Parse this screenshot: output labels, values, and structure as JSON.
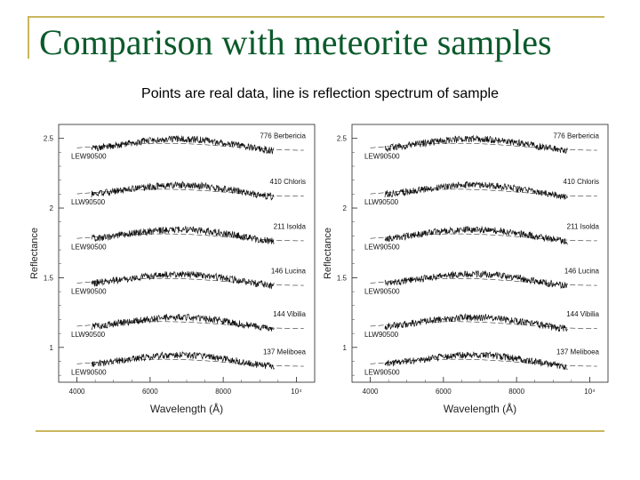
{
  "slide": {
    "title": "Comparison with meteorite samples",
    "subtitle": "Points are real data, line is reflection spectrum of sample"
  },
  "colors": {
    "title": "#0b5a2b",
    "frame": "#c9b65e"
  },
  "chart_data": [
    {
      "type": "line",
      "xlabel": "Wavelength (Å)",
      "ylabel": "Reflectance",
      "xlim": [
        3500,
        10500
      ],
      "ylim": [
        0.75,
        2.6
      ],
      "x_ticks": [
        "4000",
        "6000",
        "8000",
        "10⁴"
      ],
      "y_ticks": [
        "1",
        "1.5",
        "2",
        "2.5"
      ],
      "series": [
        {
          "name": "776 Berbericia",
          "sample": "LEW90500",
          "offset": 2.45
        },
        {
          "name": "410 Chloris",
          "sample": "LLW90500",
          "offset": 2.12
        },
        {
          "name": "211 Isolda",
          "sample": "LEW90500",
          "offset": 1.8
        },
        {
          "name": "146 Lucina",
          "sample": "LEW90500",
          "offset": 1.48
        },
        {
          "name": "144 Vibilia",
          "sample": "LLW90500",
          "offset": 1.17
        },
        {
          "name": "137 Meliboea",
          "sample": "LEW90500",
          "offset": 0.9
        }
      ]
    },
    {
      "type": "line",
      "xlabel": "Wavelength (Å)",
      "ylabel": "Reflectance",
      "xlim": [
        3500,
        10500
      ],
      "ylim": [
        0.75,
        2.6
      ],
      "x_ticks": [
        "4000",
        "6000",
        "8000",
        "10⁴"
      ],
      "y_ticks": [
        "1",
        "1.5",
        "2",
        "2.5"
      ],
      "series": [
        {
          "name": "776 Berbericia",
          "sample": "LEW90500",
          "offset": 2.45
        },
        {
          "name": "410 Chloris",
          "sample": "LLW90500",
          "offset": 2.12
        },
        {
          "name": "211 Isolda",
          "sample": "LEW90500",
          "offset": 1.8
        },
        {
          "name": "146 Lucina",
          "sample": "LEW90500",
          "offset": 1.48
        },
        {
          "name": "144 Vibilia",
          "sample": "LLW90500",
          "offset": 1.17
        },
        {
          "name": "137 Meliboea",
          "sample": "LEW90500",
          "offset": 0.9
        }
      ]
    }
  ]
}
